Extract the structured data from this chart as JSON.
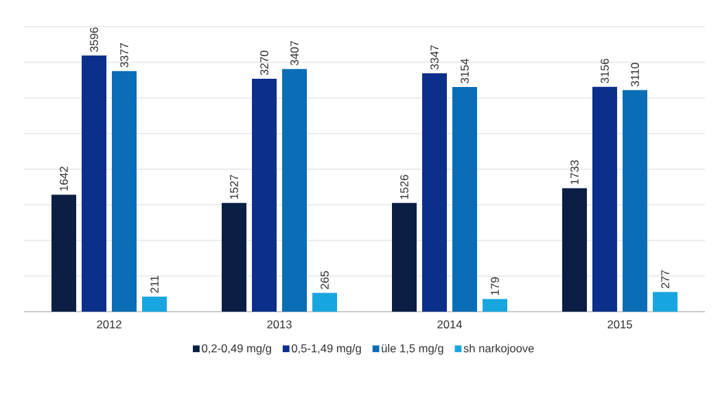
{
  "chart_data": {
    "type": "bar",
    "categories": [
      "2012",
      "2013",
      "2014",
      "2015"
    ],
    "series": [
      {
        "name": "0,2-0,49 mg/g",
        "color": "#0b1f45",
        "values": [
          1642,
          1527,
          1526,
          1733
        ]
      },
      {
        "name": "0,5-1,49 mg/g",
        "color": "#0b2f8a",
        "values": [
          3596,
          3270,
          3347,
          3156
        ]
      },
      {
        "name": "üle 1,5 mg/g",
        "color": "#0a6db5",
        "values": [
          3377,
          3407,
          3154,
          3110
        ]
      },
      {
        "name": "sh narkojoove",
        "color": "#19a6e0",
        "values": [
          211,
          265,
          179,
          277
        ]
      }
    ],
    "ylim": [
      0,
      4000
    ],
    "yticks": [
      {
        "value": 0,
        "label": null
      },
      {
        "value": 500,
        "label": null
      },
      {
        "value": 1000,
        "label": null
      },
      {
        "value": 1500,
        "label": null
      },
      {
        "value": 2000,
        "label": null
      },
      {
        "value": 2500,
        "label": null
      },
      {
        "value": 3000,
        "label": null
      },
      {
        "value": 3500,
        "label": null
      },
      {
        "value": 4000,
        "label": null
      }
    ],
    "grid": "y",
    "tick_labels": "x",
    "data_labels": true,
    "legend": "bottom"
  }
}
